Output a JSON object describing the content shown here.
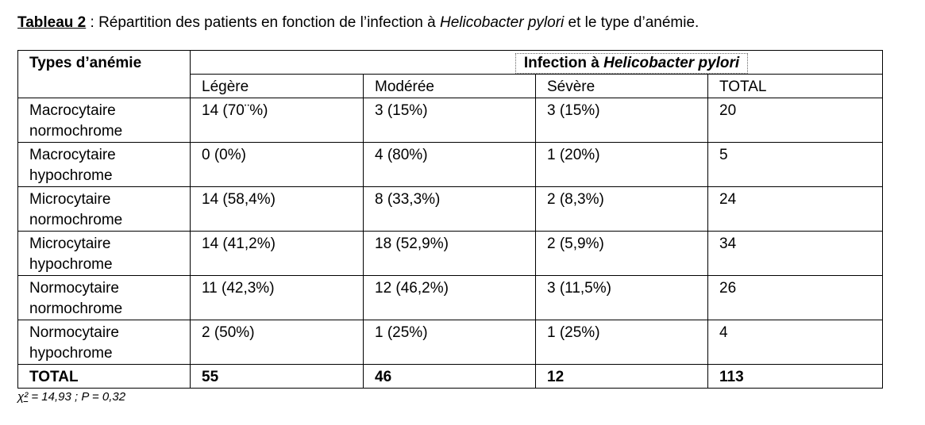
{
  "caption": {
    "label": "Tableau 2",
    "text_before": " : Répartition des patients en fonction de l’infection à ",
    "italic": "Helicobacter pylori",
    "text_after": " et le type d’anémie."
  },
  "table": {
    "row_header": "Types d’anémie",
    "group_header_prefix": "Infection à ",
    "group_header_italic": "Helicobacter pylori",
    "columns": [
      "Légère",
      "Modérée",
      "Sévère",
      "TOTAL"
    ],
    "rows": [
      {
        "type": "Macrocytaire normochrome",
        "cells": [
          "14 (70¨%)",
          "3 (15%)",
          "3 (15%)",
          "20"
        ]
      },
      {
        "type": "Macrocytaire hypochrome",
        "cells": [
          "0 (0%)",
          "4 (80%)",
          "1 (20%)",
          "5"
        ]
      },
      {
        "type": "Microcytaire normochrome",
        "cells": [
          "14 (58,4%)",
          "8 (33,3%)",
          "2 (8,3%)",
          "24"
        ]
      },
      {
        "type": "Microcytaire hypochrome",
        "cells": [
          "14 (41,2%)",
          "18 (52,9%)",
          "2 (5,9%)",
          "34"
        ]
      },
      {
        "type": "Normocytaire normochrome",
        "cells": [
          "11 (42,3%)",
          "12 (46,2%)",
          "3 (11,5%)",
          "26"
        ]
      },
      {
        "type": "Normocytaire hypochrome",
        "cells": [
          "2 (50%)",
          "1 (25%)",
          "1 (25%)",
          "4"
        ]
      }
    ],
    "total": {
      "label": "TOTAL",
      "cells": [
        "55",
        "46",
        "12",
        "113"
      ]
    }
  },
  "footnote": {
    "chi": "χ²",
    "text": " = 14,93 ; P = 0,32"
  }
}
